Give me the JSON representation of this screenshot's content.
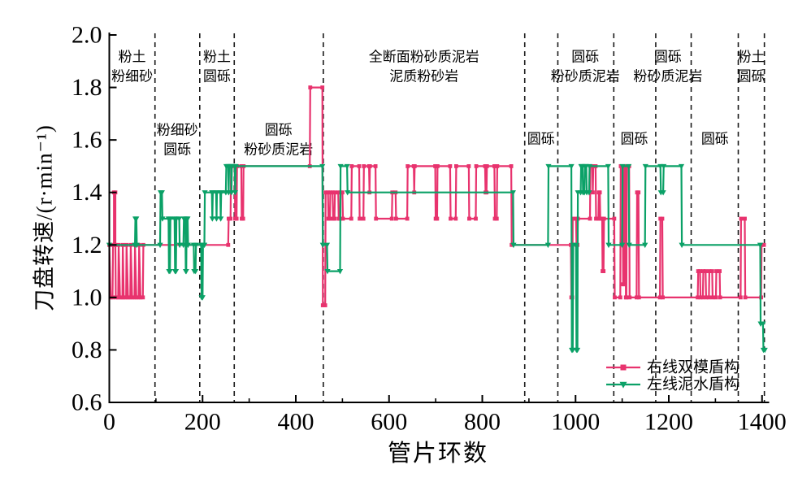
{
  "chart_data": {
    "type": "line",
    "step_style": "post",
    "xlabel": "管片环数",
    "ylabel": "刀盘转速/(r·min⁻¹)",
    "xlim": [
      0,
      1410
    ],
    "ylim": [
      0.6,
      2.0
    ],
    "grid": false,
    "x_axis": {
      "major_ticks": [
        0,
        200,
        400,
        600,
        800,
        1000,
        1200,
        1400
      ],
      "minor_ticks": [
        100,
        300,
        500,
        700,
        900,
        1100,
        1300
      ],
      "labels": [
        "0",
        "200",
        "400",
        "600",
        "800",
        "1000",
        "1200",
        "1400"
      ]
    },
    "y_axis": {
      "major_ticks": [
        0.6,
        0.8,
        1.0,
        1.2,
        1.4,
        1.6,
        1.8,
        2.0
      ],
      "labels": [
        "0.6",
        "0.8",
        "1.0",
        "1.2",
        "1.4",
        "1.6",
        "1.8",
        "2.0"
      ]
    },
    "zones": {
      "boundary_color": "#1a1a1a",
      "boundaries_x": [
        98,
        194,
        268,
        459,
        891,
        962,
        1082,
        1172,
        1248,
        1349,
        1405
      ],
      "labels": [
        {
          "lines": [
            "粉土",
            "粉细砂"
          ],
          "x": 49,
          "row": "top"
        },
        {
          "lines": [
            "粉细砂",
            "圆砾"
          ],
          "x": 146,
          "row": "mid"
        },
        {
          "lines": [
            "粉土",
            "圆砾"
          ],
          "x": 231,
          "row": "top"
        },
        {
          "lines": [
            "圆砾",
            "粉砂质泥岩"
          ],
          "x": 363,
          "row": "mid"
        },
        {
          "lines": [
            "全断面粉砂质泥岩",
            "泥质粉砂岩"
          ],
          "x": 675,
          "row": "top"
        },
        {
          "lines": [
            "圆砾"
          ],
          "x": 926,
          "row": "single"
        },
        {
          "lines": [
            "圆砾",
            "粉砂质泥岩"
          ],
          "x": 1021,
          "row": "top"
        },
        {
          "lines": [
            "圆砾"
          ],
          "x": 1126,
          "row": "single"
        },
        {
          "lines": [
            "圆砾",
            "粉砂质泥岩"
          ],
          "x": 1198,
          "row": "top"
        },
        {
          "lines": [
            "圆砾"
          ],
          "x": 1299,
          "row": "single"
        },
        {
          "lines": [
            "粉土",
            "圆砾"
          ],
          "x": 1377,
          "row": "top"
        }
      ]
    },
    "series": [
      {
        "name": "右线双模盾构",
        "color": "#e8336e",
        "marker": "square",
        "points": [
          [
            0,
            1.2
          ],
          [
            3,
            1.0
          ],
          [
            7,
            1.0
          ],
          [
            8,
            1.2
          ],
          [
            10,
            1.2
          ],
          [
            10,
            1.4
          ],
          [
            13,
            1.4
          ],
          [
            13,
            1.2
          ],
          [
            14,
            1.0
          ],
          [
            19,
            1.0
          ],
          [
            20,
            1.2
          ],
          [
            23,
            1.0
          ],
          [
            28,
            1.0
          ],
          [
            29,
            1.2
          ],
          [
            31,
            1.0
          ],
          [
            36,
            1.0
          ],
          [
            37,
            1.2
          ],
          [
            40,
            1.0
          ],
          [
            45,
            1.0
          ],
          [
            46,
            1.2
          ],
          [
            49,
            1.0
          ],
          [
            54,
            1.0
          ],
          [
            55,
            1.2
          ],
          [
            58,
            1.0
          ],
          [
            63,
            1.0
          ],
          [
            64,
            1.2
          ],
          [
            67,
            1.0
          ],
          [
            72,
            1.0
          ],
          [
            73,
            1.2
          ],
          [
            255,
            1.2
          ],
          [
            256,
            1.3
          ],
          [
            260,
            1.3
          ],
          [
            261,
            1.5
          ],
          [
            269,
            1.5
          ],
          [
            270,
            1.3
          ],
          [
            273,
            1.3
          ],
          [
            274,
            1.5
          ],
          [
            283,
            1.5
          ],
          [
            284,
            1.3
          ],
          [
            287,
            1.3
          ],
          [
            288,
            1.5
          ],
          [
            430,
            1.5
          ],
          [
            431,
            1.8
          ],
          [
            457,
            1.8
          ],
          [
            458,
            0.97
          ],
          [
            463,
            0.97
          ],
          [
            464,
            1.4
          ],
          [
            469,
            1.4
          ],
          [
            470,
            1.3
          ],
          [
            473,
            1.3
          ],
          [
            474,
            1.4
          ],
          [
            479,
            1.4
          ],
          [
            480,
            1.3
          ],
          [
            483,
            1.3
          ],
          [
            484,
            1.4
          ],
          [
            491,
            1.4
          ],
          [
            492,
            1.3
          ],
          [
            495,
            1.3
          ],
          [
            496,
            1.4
          ],
          [
            500,
            1.4
          ],
          [
            501,
            1.3
          ],
          [
            519,
            1.3
          ],
          [
            520,
            1.5
          ],
          [
            536,
            1.5
          ],
          [
            537,
            1.3
          ],
          [
            545,
            1.3
          ],
          [
            546,
            1.5
          ],
          [
            557,
            1.5
          ],
          [
            558,
            1.4
          ],
          [
            559,
            1.5
          ],
          [
            571,
            1.5
          ],
          [
            572,
            1.3
          ],
          [
            606,
            1.3
          ],
          [
            607,
            1.4
          ],
          [
            614,
            1.4
          ],
          [
            615,
            1.3
          ],
          [
            639,
            1.3
          ],
          [
            640,
            1.5
          ],
          [
            653,
            1.5
          ],
          [
            654,
            1.4
          ],
          [
            655,
            1.5
          ],
          [
            699,
            1.5
          ],
          [
            700,
            1.3
          ],
          [
            703,
            1.3
          ],
          [
            704,
            1.5
          ],
          [
            731,
            1.5
          ],
          [
            732,
            1.3
          ],
          [
            743,
            1.3
          ],
          [
            744,
            1.5
          ],
          [
            771,
            1.5
          ],
          [
            772,
            1.3
          ],
          [
            786,
            1.3
          ],
          [
            787,
            1.5
          ],
          [
            806,
            1.5
          ],
          [
            807,
            1.4
          ],
          [
            809,
            1.4
          ],
          [
            810,
            1.5
          ],
          [
            826,
            1.5
          ],
          [
            827,
            1.3
          ],
          [
            831,
            1.3
          ],
          [
            832,
            1.5
          ],
          [
            862,
            1.5
          ],
          [
            863,
            1.2
          ],
          [
            990,
            1.2
          ],
          [
            991,
            1.0
          ],
          [
            993,
            1.0
          ],
          [
            994,
            1.3
          ],
          [
            1001,
            1.3
          ],
          [
            1002,
            1.2
          ],
          [
            1004,
            1.2
          ],
          [
            1005,
            1.3
          ],
          [
            1031,
            1.3
          ],
          [
            1032,
            1.5
          ],
          [
            1036,
            1.5
          ],
          [
            1037,
            1.4
          ],
          [
            1038,
            1.5
          ],
          [
            1043,
            1.5
          ],
          [
            1044,
            1.3
          ],
          [
            1049,
            1.3
          ],
          [
            1050,
            1.4
          ],
          [
            1052,
            1.4
          ],
          [
            1053,
            1.3
          ],
          [
            1057,
            1.3
          ],
          [
            1058,
            1.1
          ],
          [
            1060,
            1.1
          ],
          [
            1061,
            1.3
          ],
          [
            1083,
            1.3
          ],
          [
            1084,
            1.0
          ],
          [
            1096,
            1.0
          ],
          [
            1097,
            1.5
          ],
          [
            1101,
            1.5
          ],
          [
            1102,
            1.05
          ],
          [
            1104,
            1.05
          ],
          [
            1105,
            1.5
          ],
          [
            1107,
            1.5
          ],
          [
            1108,
            1.0
          ],
          [
            1109,
            1.0
          ],
          [
            1110,
            1.5
          ],
          [
            1115,
            1.5
          ],
          [
            1116,
            1.0
          ],
          [
            1131,
            1.0
          ],
          [
            1132,
            1.4
          ],
          [
            1135,
            1.4
          ],
          [
            1136,
            1.0
          ],
          [
            1181,
            1.0
          ],
          [
            1182,
            1.3
          ],
          [
            1186,
            1.3
          ],
          [
            1187,
            1.0
          ],
          [
            1262,
            1.0
          ],
          [
            1263,
            1.1
          ],
          [
            1267,
            1.1
          ],
          [
            1268,
            1.0
          ],
          [
            1273,
            1.0
          ],
          [
            1274,
            1.1
          ],
          [
            1279,
            1.1
          ],
          [
            1280,
            1.0
          ],
          [
            1286,
            1.0
          ],
          [
            1287,
            1.1
          ],
          [
            1293,
            1.1
          ],
          [
            1294,
            1.0
          ],
          [
            1301,
            1.0
          ],
          [
            1302,
            1.1
          ],
          [
            1309,
            1.1
          ],
          [
            1310,
            1.0
          ],
          [
            1354,
            1.0
          ],
          [
            1355,
            1.3
          ],
          [
            1363,
            1.3
          ],
          [
            1364,
            1.0
          ],
          [
            1398,
            1.0
          ],
          [
            1399,
            1.2
          ],
          [
            1404,
            1.2
          ]
        ]
      },
      {
        "name": "左线泥水盾构",
        "color": "#0ba167",
        "marker": "triangle-down",
        "points": [
          [
            0,
            1.2
          ],
          [
            55,
            1.2
          ],
          [
            56,
            1.3
          ],
          [
            58,
            1.3
          ],
          [
            59,
            1.2
          ],
          [
            109,
            1.2
          ],
          [
            110,
            1.4
          ],
          [
            113,
            1.4
          ],
          [
            114,
            1.3
          ],
          [
            127,
            1.3
          ],
          [
            128,
            1.1
          ],
          [
            130,
            1.1
          ],
          [
            131,
            1.3
          ],
          [
            140,
            1.3
          ],
          [
            141,
            1.1
          ],
          [
            143,
            1.1
          ],
          [
            144,
            1.3
          ],
          [
            150,
            1.3
          ],
          [
            151,
            1.2
          ],
          [
            159,
            1.2
          ],
          [
            160,
            1.3
          ],
          [
            163,
            1.3
          ],
          [
            164,
            1.1
          ],
          [
            165,
            1.1
          ],
          [
            166,
            1.3
          ],
          [
            168,
            1.3
          ],
          [
            169,
            1.2
          ],
          [
            181,
            1.2
          ],
          [
            182,
            1.1
          ],
          [
            185,
            1.1
          ],
          [
            186,
            1.2
          ],
          [
            197,
            1.2
          ],
          [
            198,
            1.0
          ],
          [
            200,
            1.0
          ],
          [
            201,
            1.2
          ],
          [
            204,
            1.2
          ],
          [
            205,
            1.4
          ],
          [
            220,
            1.4
          ],
          [
            221,
            1.3
          ],
          [
            222,
            1.4
          ],
          [
            229,
            1.4
          ],
          [
            230,
            1.3
          ],
          [
            231,
            1.4
          ],
          [
            238,
            1.4
          ],
          [
            239,
            1.3
          ],
          [
            240,
            1.4
          ],
          [
            250,
            1.4
          ],
          [
            251,
            1.5
          ],
          [
            255,
            1.5
          ],
          [
            256,
            1.4
          ],
          [
            257,
            1.5
          ],
          [
            261,
            1.5
          ],
          [
            262,
            1.4
          ],
          [
            263,
            1.5
          ],
          [
            269,
            1.5
          ],
          [
            270,
            1.4
          ],
          [
            271,
            1.5
          ],
          [
            457,
            1.5
          ],
          [
            458,
            1.2
          ],
          [
            467,
            1.2
          ],
          [
            468,
            1.1
          ],
          [
            495,
            1.1
          ],
          [
            496,
            1.5
          ],
          [
            510,
            1.5
          ],
          [
            511,
            1.4
          ],
          [
            866,
            1.4
          ],
          [
            867,
            1.2
          ],
          [
            941,
            1.2
          ],
          [
            942,
            1.5
          ],
          [
            991,
            1.5
          ],
          [
            992,
            0.8
          ],
          [
            994,
            0.8
          ],
          [
            995,
            1.2
          ],
          [
            1001,
            1.2
          ],
          [
            1002,
            0.8
          ],
          [
            1004,
            0.8
          ],
          [
            1005,
            1.4
          ],
          [
            1011,
            1.4
          ],
          [
            1012,
            1.5
          ],
          [
            1015,
            1.5
          ],
          [
            1016,
            1.4
          ],
          [
            1019,
            1.4
          ],
          [
            1020,
            1.5
          ],
          [
            1023,
            1.5
          ],
          [
            1024,
            1.4
          ],
          [
            1029,
            1.4
          ],
          [
            1030,
            1.5
          ],
          [
            1070,
            1.5
          ],
          [
            1071,
            1.2
          ],
          [
            1100,
            1.2
          ],
          [
            1101,
            1.5
          ],
          [
            1114,
            1.5
          ],
          [
            1115,
            1.2
          ],
          [
            1149,
            1.2
          ],
          [
            1150,
            1.5
          ],
          [
            1182,
            1.5
          ],
          [
            1183,
            1.4
          ],
          [
            1188,
            1.4
          ],
          [
            1189,
            1.5
          ],
          [
            1227,
            1.5
          ],
          [
            1228,
            1.2
          ],
          [
            1396,
            1.2
          ],
          [
            1397,
            0.9
          ],
          [
            1402,
            0.9
          ],
          [
            1403,
            0.8
          ],
          [
            1406,
            0.8
          ]
        ]
      }
    ],
    "legend": {
      "position": "inside-bottom-right",
      "items": [
        "右线双模盾构",
        "左线泥水盾构"
      ]
    }
  }
}
